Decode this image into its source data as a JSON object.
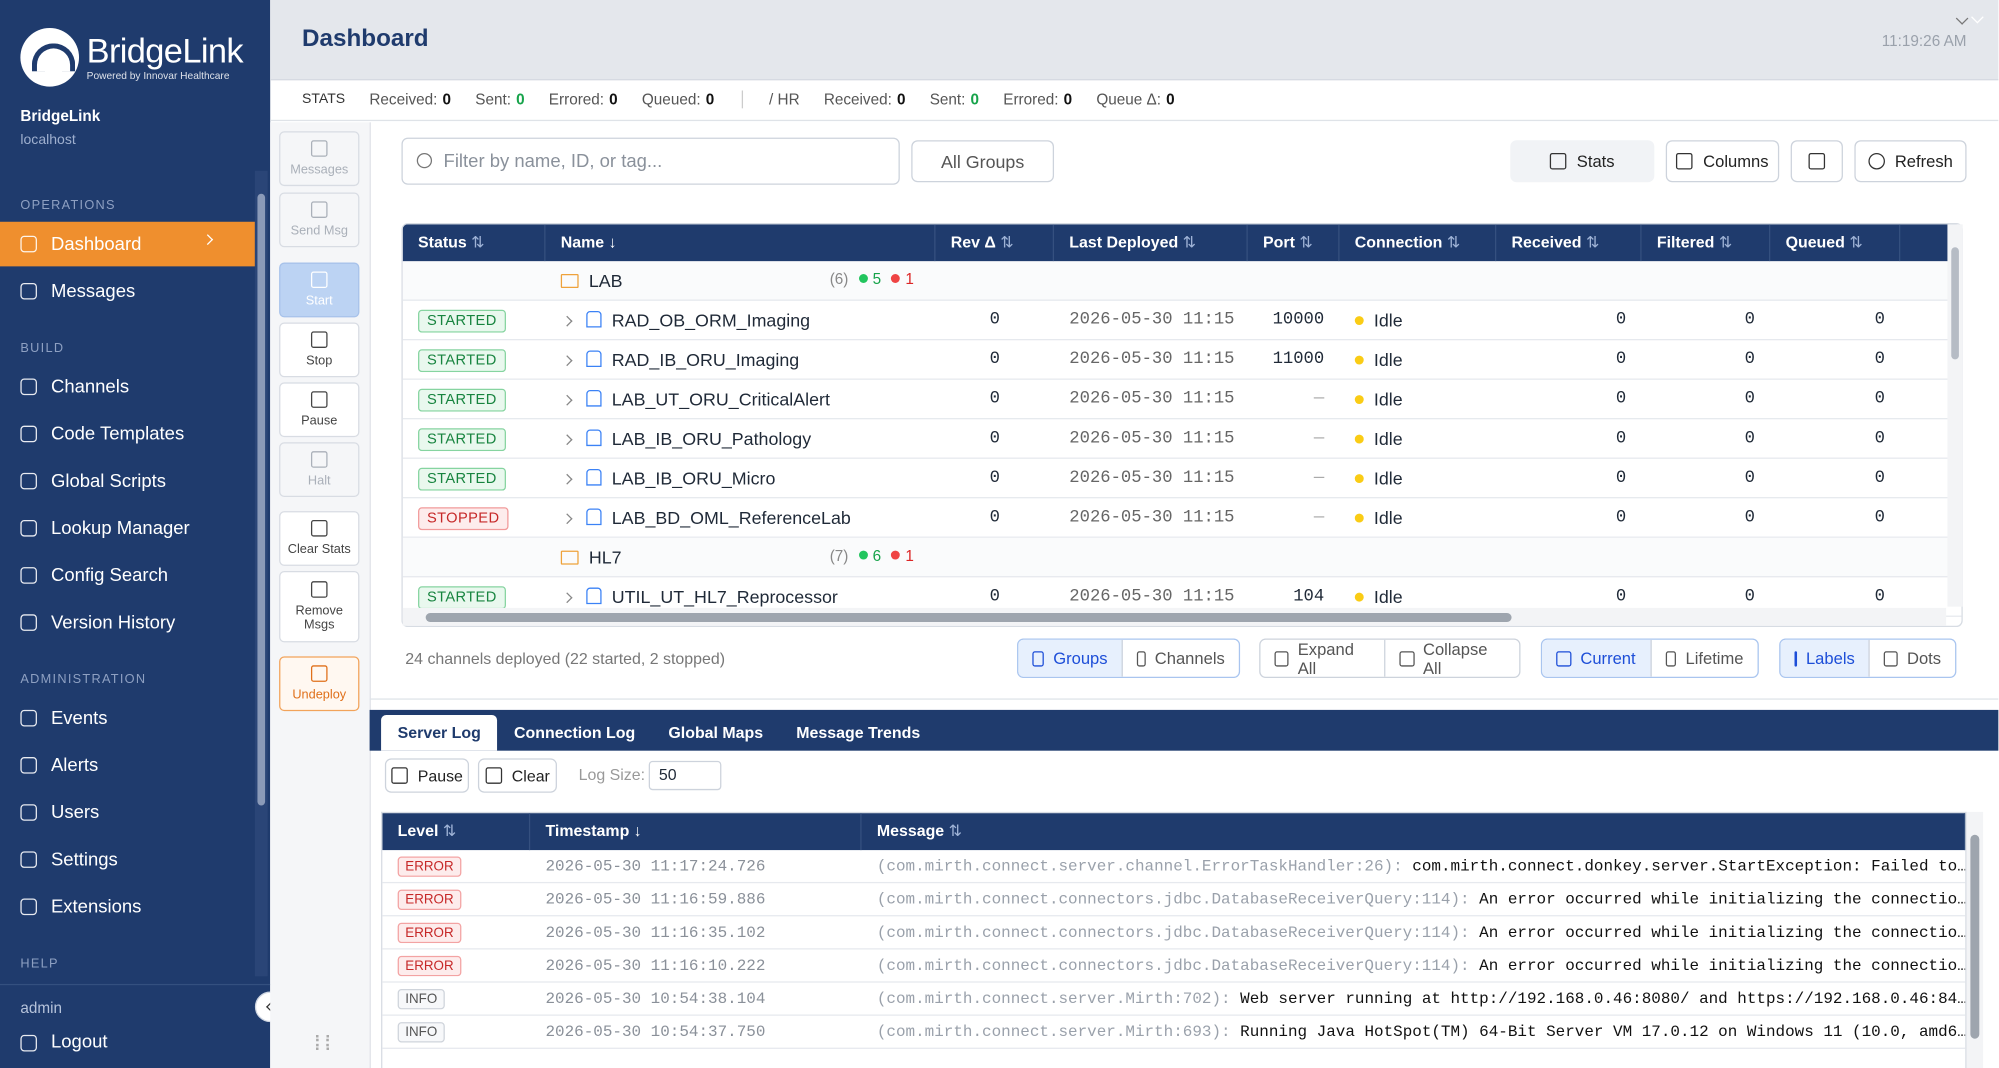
{
  "sidebar": {
    "brand": "BridgeLink",
    "tagline": "Powered by Innovar Healthcare",
    "server": "BridgeLink",
    "host": "localhost",
    "sections": [
      {
        "title": "OPERATIONS",
        "items": [
          "Dashboard",
          "Messages"
        ]
      },
      {
        "title": "BUILD",
        "items": [
          "Channels",
          "Code Templates",
          "Global Scripts",
          "Lookup Manager",
          "Config Search",
          "Version History"
        ]
      },
      {
        "title": "ADMINISTRATION",
        "items": [
          "Events",
          "Alerts",
          "Users",
          "Settings",
          "Extensions"
        ]
      },
      {
        "title": "HELP"
      }
    ],
    "user": "admin",
    "logout": "Logout"
  },
  "header": {
    "title": "Dashboard",
    "time": "11:19:26 AM"
  },
  "stats": {
    "label": "STATS",
    "totals": [
      {
        "label": "Received:",
        "value": 0
      },
      {
        "label": "Sent:",
        "value": 0
      },
      {
        "label": "Errored:",
        "value": 0
      },
      {
        "label": "Queued:",
        "value": 0
      }
    ],
    "rate_label": "/ HR",
    "rates": [
      {
        "label": "Received:",
        "value": 0
      },
      {
        "label": "Sent:",
        "value": 0
      },
      {
        "label": "Errored:",
        "value": 0
      },
      {
        "label": "Queue Δ:",
        "value": 0
      }
    ]
  },
  "actions": [
    "Messages",
    "Send Msg",
    "Start",
    "Stop",
    "Pause",
    "Halt",
    "Clear Stats",
    "Remove Msgs",
    "Undeploy"
  ],
  "filter": {
    "placeholder": "Filter by name, ID, or tag...",
    "groups": "All Groups",
    "stats": "Stats",
    "columns": "Columns",
    "refresh": "Refresh"
  },
  "table": {
    "columns": [
      "Status",
      "Name",
      "Rev Δ",
      "Last Deployed",
      "Port",
      "Connection",
      "Received",
      "Filtered",
      "Queued"
    ],
    "rows": [
      {
        "group": "LAB",
        "count": "(6)",
        "started": 5,
        "stopped": 1
      },
      {
        "status": "STARTED",
        "name": "RAD_OB_ORM_Imaging",
        "rev": 0,
        "deployed": "2026-05-30 11:15",
        "port": 10000,
        "connection": "Idle",
        "received": 0,
        "filtered": 0,
        "queued": 0
      },
      {
        "status": "STARTED",
        "name": "RAD_IB_ORU_Imaging",
        "rev": 0,
        "deployed": "2026-05-30 11:15",
        "port": 11000,
        "connection": "Idle",
        "received": 0,
        "filtered": 0,
        "queued": 0
      },
      {
        "status": "STARTED",
        "name": "LAB_UT_ORU_CriticalAlert",
        "rev": 0,
        "deployed": "2026-05-30 11:15",
        "port": "—",
        "connection": "Idle",
        "received": 0,
        "filtered": 0,
        "queued": 0
      },
      {
        "status": "STARTED",
        "name": "LAB_IB_ORU_Pathology",
        "rev": 0,
        "deployed": "2026-05-30 11:15",
        "port": "—",
        "connection": "Idle",
        "received": 0,
        "filtered": 0,
        "queued": 0
      },
      {
        "status": "STARTED",
        "name": "LAB_IB_ORU_Micro",
        "rev": 0,
        "deployed": "2026-05-30 11:15",
        "port": "—",
        "connection": "Idle",
        "received": 0,
        "filtered": 0,
        "queued": 0
      },
      {
        "status": "STOPPED",
        "name": "LAB_BD_OML_ReferenceLab",
        "rev": 0,
        "deployed": "2026-05-30 11:15",
        "port": "—",
        "connection": "Idle",
        "received": 0,
        "filtered": 0,
        "queued": 0
      },
      {
        "group": "HL7",
        "count": "(7)",
        "started": 6,
        "stopped": 1
      },
      {
        "status": "STARTED",
        "name": "UTIL_UT_HL7_Reprocessor",
        "rev": 0,
        "deployed": "2026-05-30 11:15",
        "port": 104,
        "connection": "Idle",
        "received": 0,
        "filtered": 0,
        "queued": 0
      }
    ]
  },
  "footer": {
    "summary": "24 channels deployed (22 started, 2 stopped)",
    "toggles": [
      [
        "Groups",
        "Channels"
      ],
      [
        "Expand All",
        "Collapse All"
      ],
      [
        "Current",
        "Lifetime"
      ],
      [
        "Labels",
        "Dots"
      ]
    ]
  },
  "log": {
    "tabs": [
      "Server Log",
      "Connection Log",
      "Global Maps",
      "Message Trends"
    ],
    "pause": "Pause",
    "clear": "Clear",
    "size_label": "Log Size:",
    "size": 50,
    "columns": [
      "Level",
      "Timestamp",
      "Message"
    ],
    "rows": [
      {
        "level": "ERROR",
        "timestamp": "2026-05-30 11:17:24.726",
        "source": "(com.mirth.connect.server.channel.ErrorTaskHandler:26):",
        "message": "com.mirth.connect.donkey.server.StartException: Failed to…"
      },
      {
        "level": "ERROR",
        "timestamp": "2026-05-30 11:16:59.886",
        "source": "(com.mirth.connect.connectors.jdbc.DatabaseReceiverQuery:114):",
        "message": "An error occurred while initializing the connectio…"
      },
      {
        "level": "ERROR",
        "timestamp": "2026-05-30 11:16:35.102",
        "source": "(com.mirth.connect.connectors.jdbc.DatabaseReceiverQuery:114):",
        "message": "An error occurred while initializing the connectio…"
      },
      {
        "level": "ERROR",
        "timestamp": "2026-05-30 11:16:10.222",
        "source": "(com.mirth.connect.connectors.jdbc.DatabaseReceiverQuery:114):",
        "message": "An error occurred while initializing the connectio…"
      },
      {
        "level": "INFO",
        "timestamp": "2026-05-30 10:54:38.104",
        "source": "(com.mirth.connect.server.Mirth:702):",
        "message": "Web server running at http://192.168.0.46:8080/ and https://192.168.0.46:84…"
      },
      {
        "level": "INFO",
        "timestamp": "2026-05-30 10:54:37.750",
        "source": "(com.mirth.connect.server.Mirth:693):",
        "message": "Running Java HotSpot(TM) 64-Bit Server VM 17.0.12 on Windows 11 (10.0, amd6…"
      }
    ]
  }
}
